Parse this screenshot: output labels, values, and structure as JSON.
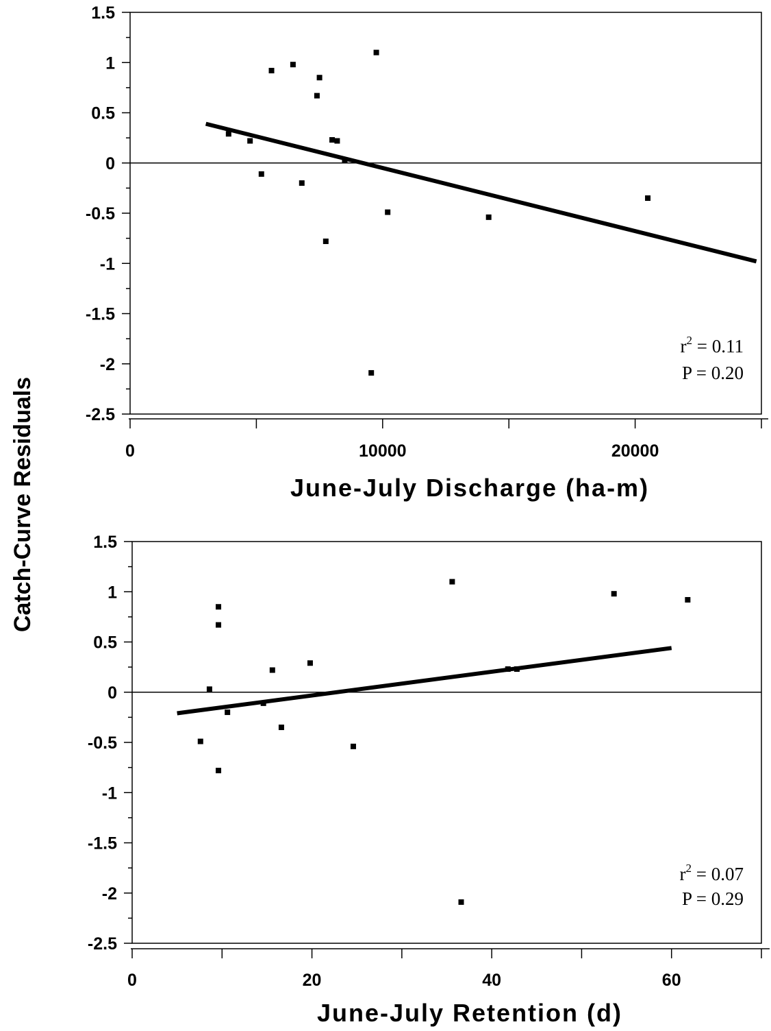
{
  "y_axis_label": "Catch-Curve Residuals",
  "chart_data": [
    {
      "type": "scatter",
      "xlabel": "June-July Discharge (ha-m)",
      "ylabel": "",
      "xlim": [
        0,
        25000
      ],
      "ylim": [
        -2.5,
        1.5
      ],
      "x_tick_labels": [
        {
          "value": 0,
          "label": "0"
        },
        {
          "value": 10000,
          "label": "10000"
        },
        {
          "value": 20000,
          "label": "20000"
        }
      ],
      "y_tick_labels": [
        {
          "value": 1.5,
          "label": "1.5"
        },
        {
          "value": 1,
          "label": "1"
        },
        {
          "value": 0.5,
          "label": "0.5"
        },
        {
          "value": 0,
          "label": "0"
        },
        {
          "value": -0.5,
          "label": "-0.5"
        },
        {
          "value": -1,
          "label": "-1"
        },
        {
          "value": -1.5,
          "label": "-1.5"
        },
        {
          "value": -2,
          "label": "-2"
        },
        {
          "value": -2.5,
          "label": "-2.5"
        }
      ],
      "points": [
        {
          "x": 3900,
          "y": 0.29
        },
        {
          "x": 4750,
          "y": 0.22
        },
        {
          "x": 5200,
          "y": -0.11
        },
        {
          "x": 5600,
          "y": 0.92
        },
        {
          "x": 6450,
          "y": 0.98
        },
        {
          "x": 6800,
          "y": -0.2
        },
        {
          "x": 7400,
          "y": 0.67
        },
        {
          "x": 7500,
          "y": 0.85
        },
        {
          "x": 7750,
          "y": -0.78
        },
        {
          "x": 8000,
          "y": 0.23
        },
        {
          "x": 8200,
          "y": 0.22
        },
        {
          "x": 8500,
          "y": 0.03
        },
        {
          "x": 9550,
          "y": -2.09
        },
        {
          "x": 9750,
          "y": 1.1
        },
        {
          "x": 10200,
          "y": -0.49
        },
        {
          "x": 14200,
          "y": -0.54
        },
        {
          "x": 20500,
          "y": -0.35
        }
      ],
      "fit_line": {
        "x": [
          3000,
          24800
        ],
        "y": [
          0.39,
          -0.98
        ]
      },
      "reference_line_y": 0,
      "annotation": {
        "r2_label": "r",
        "r2_sup": "2",
        "r2_value": " = 0.11",
        "p_text": "P = 0.20"
      }
    },
    {
      "type": "scatter",
      "xlabel": "June-July Retention (d)",
      "ylabel": "",
      "xlim": [
        0,
        70
      ],
      "ylim": [
        -2.5,
        1.5
      ],
      "x_tick_labels": [
        {
          "value": 0,
          "label": "0"
        },
        {
          "value": 20,
          "label": "20"
        },
        {
          "value": 40,
          "label": "40"
        },
        {
          "value": 60,
          "label": "60"
        }
      ],
      "y_tick_labels": [
        {
          "value": 1.5,
          "label": "1.5"
        },
        {
          "value": 1,
          "label": "1"
        },
        {
          "value": 0.5,
          "label": "0.5"
        },
        {
          "value": 0,
          "label": "0"
        },
        {
          "value": -0.5,
          "label": "-0.5"
        },
        {
          "value": -1,
          "label": "-1"
        },
        {
          "value": -1.5,
          "label": "-1.5"
        },
        {
          "value": -2,
          "label": "-2"
        },
        {
          "value": -2.5,
          "label": "-2.5"
        }
      ],
      "points": [
        {
          "x": 7.6,
          "y": -0.49
        },
        {
          "x": 8.6,
          "y": 0.03
        },
        {
          "x": 9.6,
          "y": 0.85
        },
        {
          "x": 9.6,
          "y": 0.67
        },
        {
          "x": 9.6,
          "y": -0.78
        },
        {
          "x": 10.6,
          "y": -0.2
        },
        {
          "x": 14.6,
          "y": -0.11
        },
        {
          "x": 15.6,
          "y": 0.22
        },
        {
          "x": 16.6,
          "y": -0.35
        },
        {
          "x": 19.8,
          "y": 0.29
        },
        {
          "x": 24.6,
          "y": -0.54
        },
        {
          "x": 35.6,
          "y": 1.1
        },
        {
          "x": 36.6,
          "y": -2.09
        },
        {
          "x": 41.8,
          "y": 0.23
        },
        {
          "x": 42.8,
          "y": 0.23
        },
        {
          "x": 53.6,
          "y": 0.98
        },
        {
          "x": 61.8,
          "y": 0.92
        }
      ],
      "fit_line": {
        "x": [
          5,
          60
        ],
        "y": [
          -0.21,
          0.44
        ]
      },
      "reference_line_y": 0,
      "annotation": {
        "r2_label": "r",
        "r2_sup": "2",
        "r2_value": " = 0.07",
        "p_text": "P = 0.29"
      }
    }
  ]
}
